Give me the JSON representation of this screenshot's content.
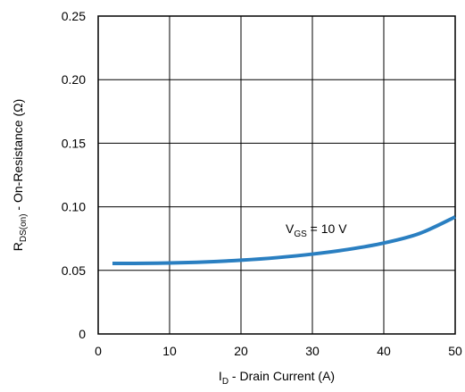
{
  "chart_data": {
    "type": "line",
    "xlabel": {
      "main": "I",
      "sub": "D",
      "rest": " - Drain Current (A)"
    },
    "ylabel": {
      "main": "R",
      "sub": "DS(on)",
      "rest": " - On-Resistance (Ω)"
    },
    "xlim": [
      0,
      50
    ],
    "ylim": [
      0,
      0.25
    ],
    "x_ticks": [
      "0",
      "10",
      "20",
      "30",
      "40",
      "50"
    ],
    "y_ticks": [
      "0",
      "0.05",
      "0.10",
      "0.15",
      "0.20",
      "0.25"
    ],
    "grid": true,
    "annotation": {
      "main": "V",
      "sub": "GS",
      "rest": " = 10 V"
    },
    "series": [
      {
        "color": "#2a7fc1",
        "x": [
          2,
          5,
          10,
          15,
          20,
          25,
          30,
          35,
          40,
          45,
          50
        ],
        "y": [
          0.0555,
          0.0555,
          0.0558,
          0.0566,
          0.058,
          0.06,
          0.0628,
          0.0665,
          0.0715,
          0.079,
          0.092
        ]
      }
    ]
  }
}
